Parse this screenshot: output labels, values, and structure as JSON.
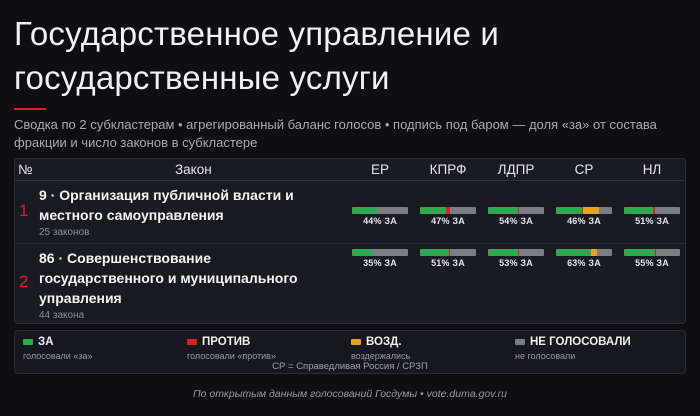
{
  "title": "Государственное управление и государственные услуги",
  "subtitle": "Сводка по 2 субкластерам • агрегированный баланс голосов • подпись под баром — доля «за» от состава фракции и число законов в субкластере",
  "table": {
    "col_num": "№",
    "col_law": "Закон",
    "parties": [
      "ЕР",
      "КПРФ",
      "ЛДПР",
      "СР",
      "НЛ"
    ]
  },
  "chart_data": {
    "type": "bar",
    "stacked": true,
    "categories": [
      "ЕР",
      "КПРФ",
      "ЛДПР",
      "СР",
      "НЛ"
    ],
    "vote_types": [
      "ЗА",
      "ПРОТИВ",
      "ВОЗД.",
      "НЕ ГОЛОСОВАЛИ"
    ],
    "rows": [
      {
        "index": "1",
        "title": "9 · Организация публичной власти и местного самоуправления",
        "count_label": "25 законов",
        "values": [
          {
            "za": 44,
            "protiv": 0,
            "vozd": 0,
            "ng": 56,
            "label": "44% ЗА"
          },
          {
            "za": 47,
            "protiv": 7,
            "vozd": 0,
            "ng": 46,
            "label": "47% ЗА"
          },
          {
            "za": 54,
            "protiv": 2,
            "vozd": 0,
            "ng": 44,
            "label": "54% ЗА"
          },
          {
            "za": 46,
            "protiv": 2,
            "vozd": 28,
            "ng": 24,
            "label": "46% ЗА"
          },
          {
            "za": 51,
            "protiv": 4,
            "vozd": 0,
            "ng": 45,
            "label": "51% ЗА"
          }
        ]
      },
      {
        "index": "2",
        "title": "86 · Совершенствование государственного и муниципального управления",
        "count_label": "44 закона",
        "values": [
          {
            "za": 35,
            "protiv": 0,
            "vozd": 0,
            "ng": 65,
            "label": "35% ЗА"
          },
          {
            "za": 51,
            "protiv": 3,
            "vozd": 0,
            "ng": 46,
            "label": "51% ЗА"
          },
          {
            "za": 53,
            "protiv": 2,
            "vozd": 0,
            "ng": 45,
            "label": "53% ЗА"
          },
          {
            "za": 63,
            "protiv": 0,
            "vozd": 10,
            "ng": 27,
            "label": "63% ЗА"
          },
          {
            "za": 55,
            "protiv": 2,
            "vozd": 0,
            "ng": 43,
            "label": "55% ЗА"
          }
        ]
      }
    ],
    "colors": {
      "za": "#2fa84f",
      "protiv": "#d6202a",
      "vozd": "#e8a21f",
      "ng": "#7c7d84"
    }
  },
  "legend": {
    "items": [
      {
        "label": "ЗА",
        "desc": "голосовали «за»",
        "color": "#2fa84f"
      },
      {
        "label": "ПРОТИВ",
        "desc": "голосовали «против»",
        "color": "#d6202a"
      },
      {
        "label": "ВОЗД.",
        "desc": "воздержались",
        "color": "#e8a21f"
      },
      {
        "label": "НЕ ГОЛОСОВАЛИ",
        "desc": "не голосовали",
        "color": "#7c7d84"
      }
    ],
    "note": "СР = Справедливая Россия / СРЗП"
  },
  "footer": "По открытым данным голосований Госдумы • vote.duma.gov.ru"
}
